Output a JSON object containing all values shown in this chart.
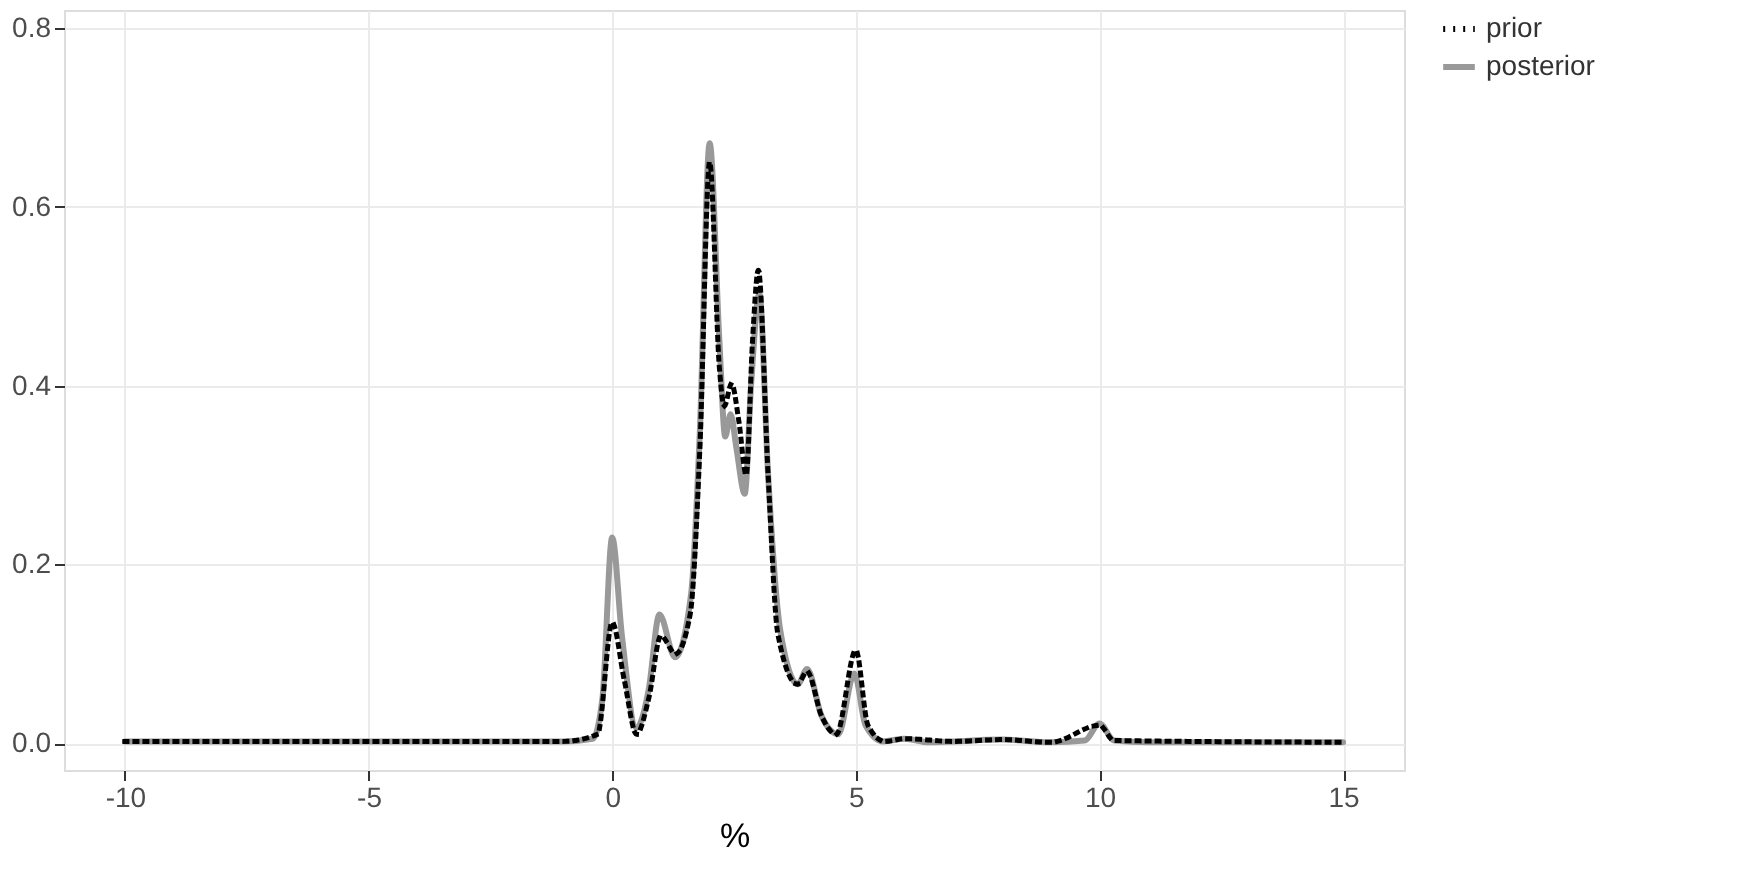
{
  "chart_data": {
    "type": "line",
    "xlabel": "%",
    "xlim": [
      -11.25,
      16.25
    ],
    "xticks": [
      -10,
      -5,
      0,
      5,
      10,
      15
    ],
    "ylim": [
      -0.03,
      0.82
    ],
    "yticks": [
      {
        "value": 0,
        "label": "0.0"
      },
      0.2,
      0.4,
      0.6,
      0.8
    ],
    "grid": true,
    "legend": "right",
    "marker": "none",
    "series": [
      {
        "name": "prior",
        "color": "#000000",
        "line_style": "dotted",
        "x": [
          -10,
          -1,
          -0.3,
          0,
          0.25,
          0.5,
          0.75,
          1.0,
          1.3,
          1.6,
          1.8,
          2.0,
          2.2,
          2.3,
          2.45,
          2.6,
          2.75,
          2.88,
          3.0,
          3.2,
          3.4,
          3.8,
          4.0,
          4.3,
          4.6,
          5.0,
          5.25,
          5.6,
          6,
          7,
          8,
          9,
          10,
          10.3,
          15
        ],
        "values": [
          0.002,
          0.002,
          0.01,
          0.135,
          0.07,
          0.01,
          0.05,
          0.12,
          0.1,
          0.144,
          0.33,
          0.65,
          0.42,
          0.377,
          0.402,
          0.36,
          0.3,
          0.45,
          0.529,
          0.3,
          0.122,
          0.066,
          0.08,
          0.03,
          0.01,
          0.104,
          0.02,
          0.002,
          0.005,
          0.002,
          0.004,
          0.001,
          0.02,
          0.003,
          0.001
        ]
      },
      {
        "name": "posterior",
        "color": "#999999",
        "line_style": "solid",
        "x": [
          -10,
          -1,
          -0.4,
          -0.2,
          0,
          0.2,
          0.5,
          0.75,
          0.97,
          1.29,
          1.62,
          1.8,
          2.0,
          2.2,
          2.32,
          2.43,
          2.55,
          2.72,
          2.85,
          3.02,
          3.2,
          3.45,
          3.81,
          4.0,
          4.3,
          4.64,
          4.97,
          5.2,
          5.56,
          6.0,
          6.5,
          7.0,
          8.0,
          9.0,
          9.7,
          10.0,
          10.3,
          11,
          15
        ],
        "values": [
          0.002,
          0.002,
          0.005,
          0.05,
          0.23,
          0.12,
          0.017,
          0.06,
          0.144,
          0.096,
          0.167,
          0.35,
          0.671,
          0.45,
          0.343,
          0.368,
          0.33,
          0.279,
          0.4,
          0.503,
          0.3,
          0.126,
          0.066,
          0.083,
          0.03,
          0.01,
          0.078,
          0.02,
          0.002,
          0.005,
          0.001,
          0.002,
          0.004,
          0.001,
          0.003,
          0.022,
          0.003,
          0.001,
          0.001
        ]
      }
    ]
  }
}
